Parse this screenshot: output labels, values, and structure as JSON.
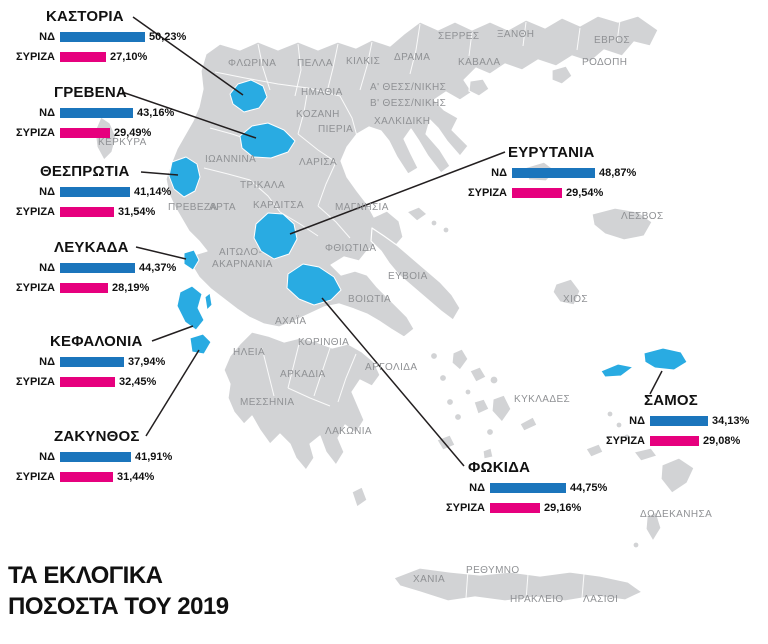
{
  "title": {
    "line1": "ΤΑ ΕΚΛΟΓΙΚΑ",
    "line2": "ΠΟΣΟΣΤΑ ΤΟΥ 2019"
  },
  "parties": {
    "nd": "ΝΔ",
    "syriza": "ΣΥΡΙΖΑ"
  },
  "colors": {
    "nd_bar": "#1b75bc",
    "syriza_bar": "#e6007e",
    "highlight_region": "#29abe2",
    "map_fill": "#d2d3d5",
    "label_text": "#8f9194"
  },
  "callouts": [
    {
      "region": "ΚΑΣΤΟΡΙΑ",
      "nd_pct": "50,23%",
      "syriza_pct": "27,10%",
      "nd_value": 50.23,
      "syriza_value": 27.1
    },
    {
      "region": "ΓΡΕΒΕΝΑ",
      "nd_pct": "43,16%",
      "syriza_pct": "29,49%",
      "nd_value": 43.16,
      "syriza_value": 29.49
    },
    {
      "region": "ΘΕΣΠΡΩΤΙΑ",
      "nd_pct": "41,14%",
      "syriza_pct": "31,54%",
      "nd_value": 41.14,
      "syriza_value": 31.54
    },
    {
      "region": "ΛΕΥΚΑΔΑ",
      "nd_pct": "44,37%",
      "syriza_pct": "28,19%",
      "nd_value": 44.37,
      "syriza_value": 28.19
    },
    {
      "region": "ΚΕΦΑΛΟΝΙΑ",
      "nd_pct": "37,94%",
      "syriza_pct": "32,45%",
      "nd_value": 37.94,
      "syriza_value": 32.45
    },
    {
      "region": "ΖΑΚΥΝΘΟΣ",
      "nd_pct": "41,91%",
      "syriza_pct": "31,44%",
      "nd_value": 41.91,
      "syriza_value": 31.44
    },
    {
      "region": "ΕΥΡΥΤΑΝΙΑ",
      "nd_pct": "48,87%",
      "syriza_pct": "29,54%",
      "nd_value": 48.87,
      "syriza_value": 29.54
    },
    {
      "region": "ΣΑΜΟΣ",
      "nd_pct": "34,13%",
      "syriza_pct": "29,08%",
      "nd_value": 34.13,
      "syriza_value": 29.08
    },
    {
      "region": "ΦΩΚΙΔΑ",
      "nd_pct": "44,75%",
      "syriza_pct": "29,16%",
      "nd_value": 44.75,
      "syriza_value": 29.16
    }
  ],
  "map_labels": [
    "ΦΛΩΡΙΝΑ",
    "ΠΕΛΛΑ",
    "ΚΙΛΚΙΣ",
    "ΔΡΑΜΑ",
    "ΣΕΡΡΕΣ",
    "ΞΑΝΘΗ",
    "ΕΒΡΟΣ",
    "ΚΑΒΑΛΑ",
    "ΡΟΔΟΠΗ",
    "ΗΜΑΘΙΑ",
    "ΚΟΖΑΝΗ",
    "Α' ΘΕΣΣ/ΝΙΚΗΣ",
    "Β' ΘΕΣΣ/ΝΙΚΗΣ",
    "ΧΑΛΚΙΔΙΚΗ",
    "ΠΙΕΡΙΑ",
    "ΚΕΡΚΥΡΑ",
    "ΙΩΑΝΝΙΝΑ",
    "ΛΑΡΙΣΑ",
    "ΤΡΙΚΑΛΑ",
    "ΠΡΕΒΕΖΑ",
    "ΑΡΤΑ",
    "ΚΑΡΔΙΤΣΑ",
    "ΜΑΓΝΗΣΙΑ",
    "ΛΕΣΒΟΣ",
    "ΑΙΤΩΛΟ-",
    "ΑΚΑΡΝΑΝΙΑ",
    "ΦΘΙΩΤΙΔΑ",
    "ΕΥΒΟΙΑ",
    "ΒΟΙΩΤΙΑ",
    "ΧΙΟΣ",
    "ΑΧΑΪΑ",
    "ΚΟΡΙΝΘΙΑ",
    "ΗΛΕΙΑ",
    "ΑΡΚΑΔΙΑ",
    "ΑΡΓΟΛΙΔΑ",
    "ΜΕΣΣΗΝΙΑ",
    "ΚΥΚΛΑΔΕΣ",
    "ΛΑΚΩΝΙΑ",
    "ΔΩΔΕΚΑΝΗΣΑ",
    "ΧΑΝΙΑ",
    "ΡΕΘΥΜΝΟ",
    "ΗΡΑΚΛΕΙΟ",
    "ΛΑΣΙΘΙ"
  ],
  "chart_data": {
    "type": "bar",
    "title": "ΤΑ ΕΚΛΟΓΙΚΑ ΠΟΣΟΣΤΑ ΤΟΥ 2019",
    "categories": [
      "ΚΑΣΤΟΡΙΑ",
      "ΓΡΕΒΕΝΑ",
      "ΘΕΣΠΡΩΤΙΑ",
      "ΛΕΥΚΑΔΑ",
      "ΚΕΦΑΛΟΝΙΑ",
      "ΖΑΚΥΝΘΟΣ",
      "ΕΥΡΥΤΑΝΙΑ",
      "ΣΑΜΟΣ",
      "ΦΩΚΙΔΑ"
    ],
    "series": [
      {
        "name": "ΝΔ",
        "values": [
          50.23,
          43.16,
          41.14,
          44.37,
          37.94,
          41.91,
          48.87,
          34.13,
          44.75
        ]
      },
      {
        "name": "ΣΥΡΙΖΑ",
        "values": [
          27.1,
          29.49,
          31.54,
          28.19,
          32.45,
          31.44,
          29.54,
          29.08,
          29.16
        ]
      }
    ],
    "unit": "%"
  }
}
